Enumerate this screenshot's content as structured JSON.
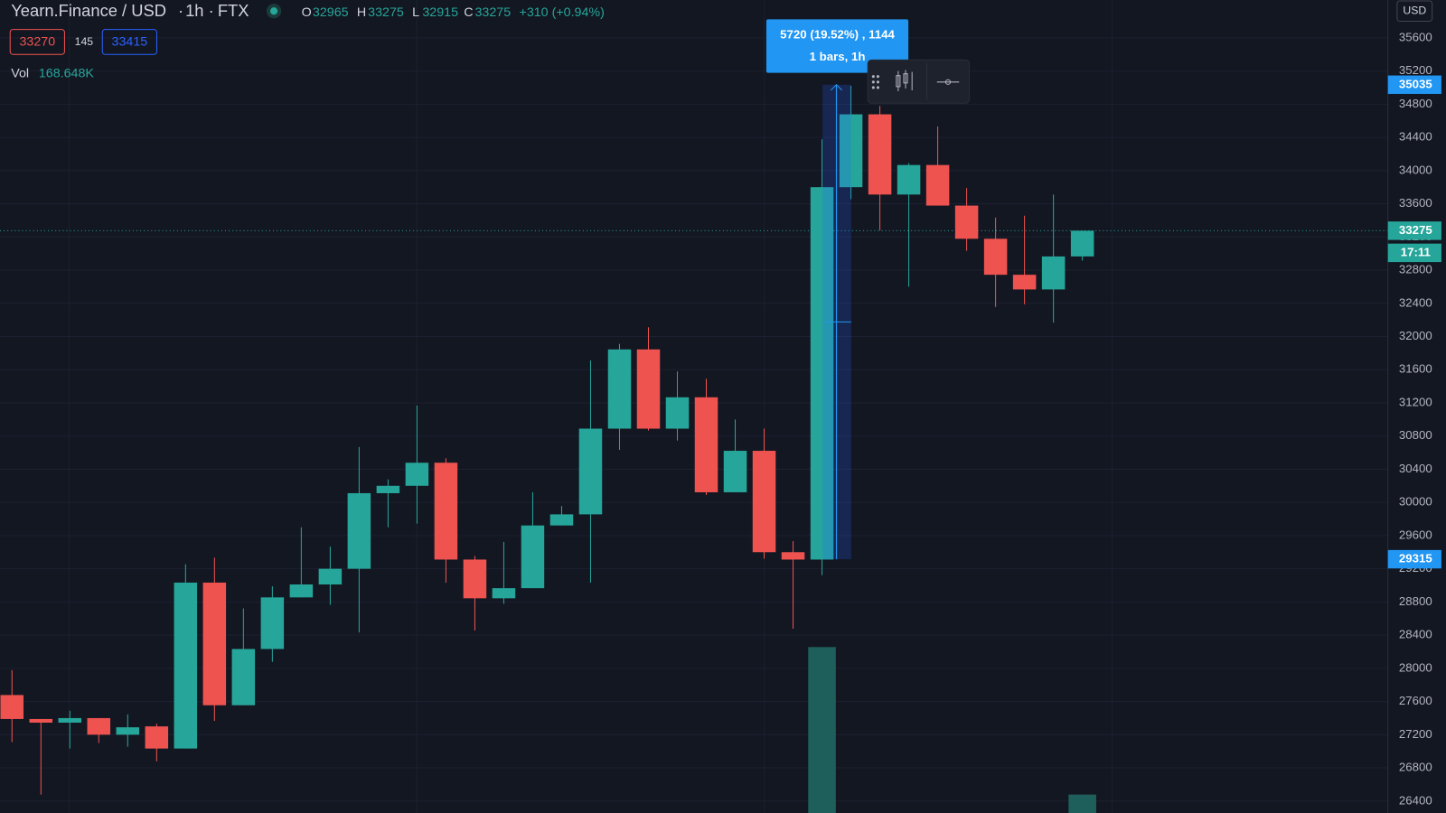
{
  "header": {
    "symbol": "Yearn.Finance / USD",
    "interval": "1h",
    "exchange": "FTX",
    "open_label": "O",
    "high_label": "H",
    "low_label": "L",
    "close_label": "C",
    "change": "+310 (+0.94%)",
    "sell_price": "33270",
    "spread": "145",
    "buy_price": "33415",
    "volume_label": "Vol",
    "volume_text": "168.648K"
  },
  "measure": {
    "text": "5720 (19.52%) , 1144",
    "subtext": "1 bars, 1h",
    "from": 29315,
    "to": 35035
  },
  "countdown": "17:11",
  "currency": "USD",
  "chart_data": {
    "type": "candlestick",
    "up_color": "#26a69a",
    "down_color": "#ef5350",
    "volume_color": "#1f5f5b",
    "ylim": [
      26256,
      36056
    ],
    "yticks": [
      26400,
      26800,
      27200,
      27600,
      28000,
      28400,
      28800,
      29200,
      29600,
      30000,
      30400,
      30800,
      31200,
      31600,
      32000,
      32400,
      32800,
      33200,
      33600,
      34000,
      34400,
      34800,
      35200,
      35600
    ],
    "grid": true,
    "open": [
      27678,
      27389,
      27345,
      27400,
      27200,
      27300,
      27033,
      29033,
      27555,
      28233,
      28855,
      29011,
      29200,
      30111,
      30200,
      30478,
      29311,
      28844,
      28966,
      29722,
      29856,
      30889,
      31844,
      30889,
      31267,
      30122,
      30622,
      29400,
      29311,
      33800,
      34678,
      33711,
      34067,
      33578,
      33178,
      32744,
      32567,
      32965
    ],
    "high": [
      27978,
      27389,
      27489,
      27400,
      27444,
      27333,
      29255,
      29333,
      28722,
      28989,
      29700,
      29467,
      30667,
      30278,
      31167,
      30533,
      29355,
      29522,
      30122,
      29956,
      31711,
      31911,
      32111,
      31578,
      31489,
      30999,
      30889,
      29533,
      34378,
      35022,
      34778,
      34089,
      34533,
      33789,
      33433,
      33456,
      33711,
      33275
    ],
    "low": [
      27111,
      26478,
      27033,
      27100,
      27055,
      26878,
      27033,
      27366,
      27555,
      28078,
      28855,
      28766,
      28433,
      29700,
      29744,
      29033,
      28456,
      28778,
      28966,
      29722,
      29033,
      30633,
      30867,
      30745,
      30089,
      30122,
      29322,
      28478,
      29122,
      33656,
      33278,
      32600,
      33578,
      33033,
      32356,
      32389,
      32167,
      32915
    ],
    "close": [
      27389,
      27345,
      27400,
      27200,
      27289,
      27033,
      29033,
      27555,
      28233,
      28855,
      29011,
      29200,
      30111,
      30200,
      30478,
      29311,
      28844,
      28966,
      29722,
      29856,
      30889,
      31844,
      30889,
      31267,
      30122,
      30622,
      29400,
      29311,
      33800,
      34678,
      33711,
      34067,
      33578,
      33178,
      32744,
      32567,
      32965,
      33275
    ],
    "volume": [
      null,
      null,
      null,
      null,
      null,
      null,
      null,
      null,
      null,
      null,
      null,
      null,
      null,
      null,
      null,
      null,
      null,
      null,
      null,
      null,
      null,
      null,
      null,
      null,
      null,
      null,
      null,
      null,
      1518000,
      null,
      null,
      null,
      null,
      null,
      null,
      null,
      null,
      168648
    ],
    "volume_ylim": [
      0,
      1686480
    ]
  }
}
